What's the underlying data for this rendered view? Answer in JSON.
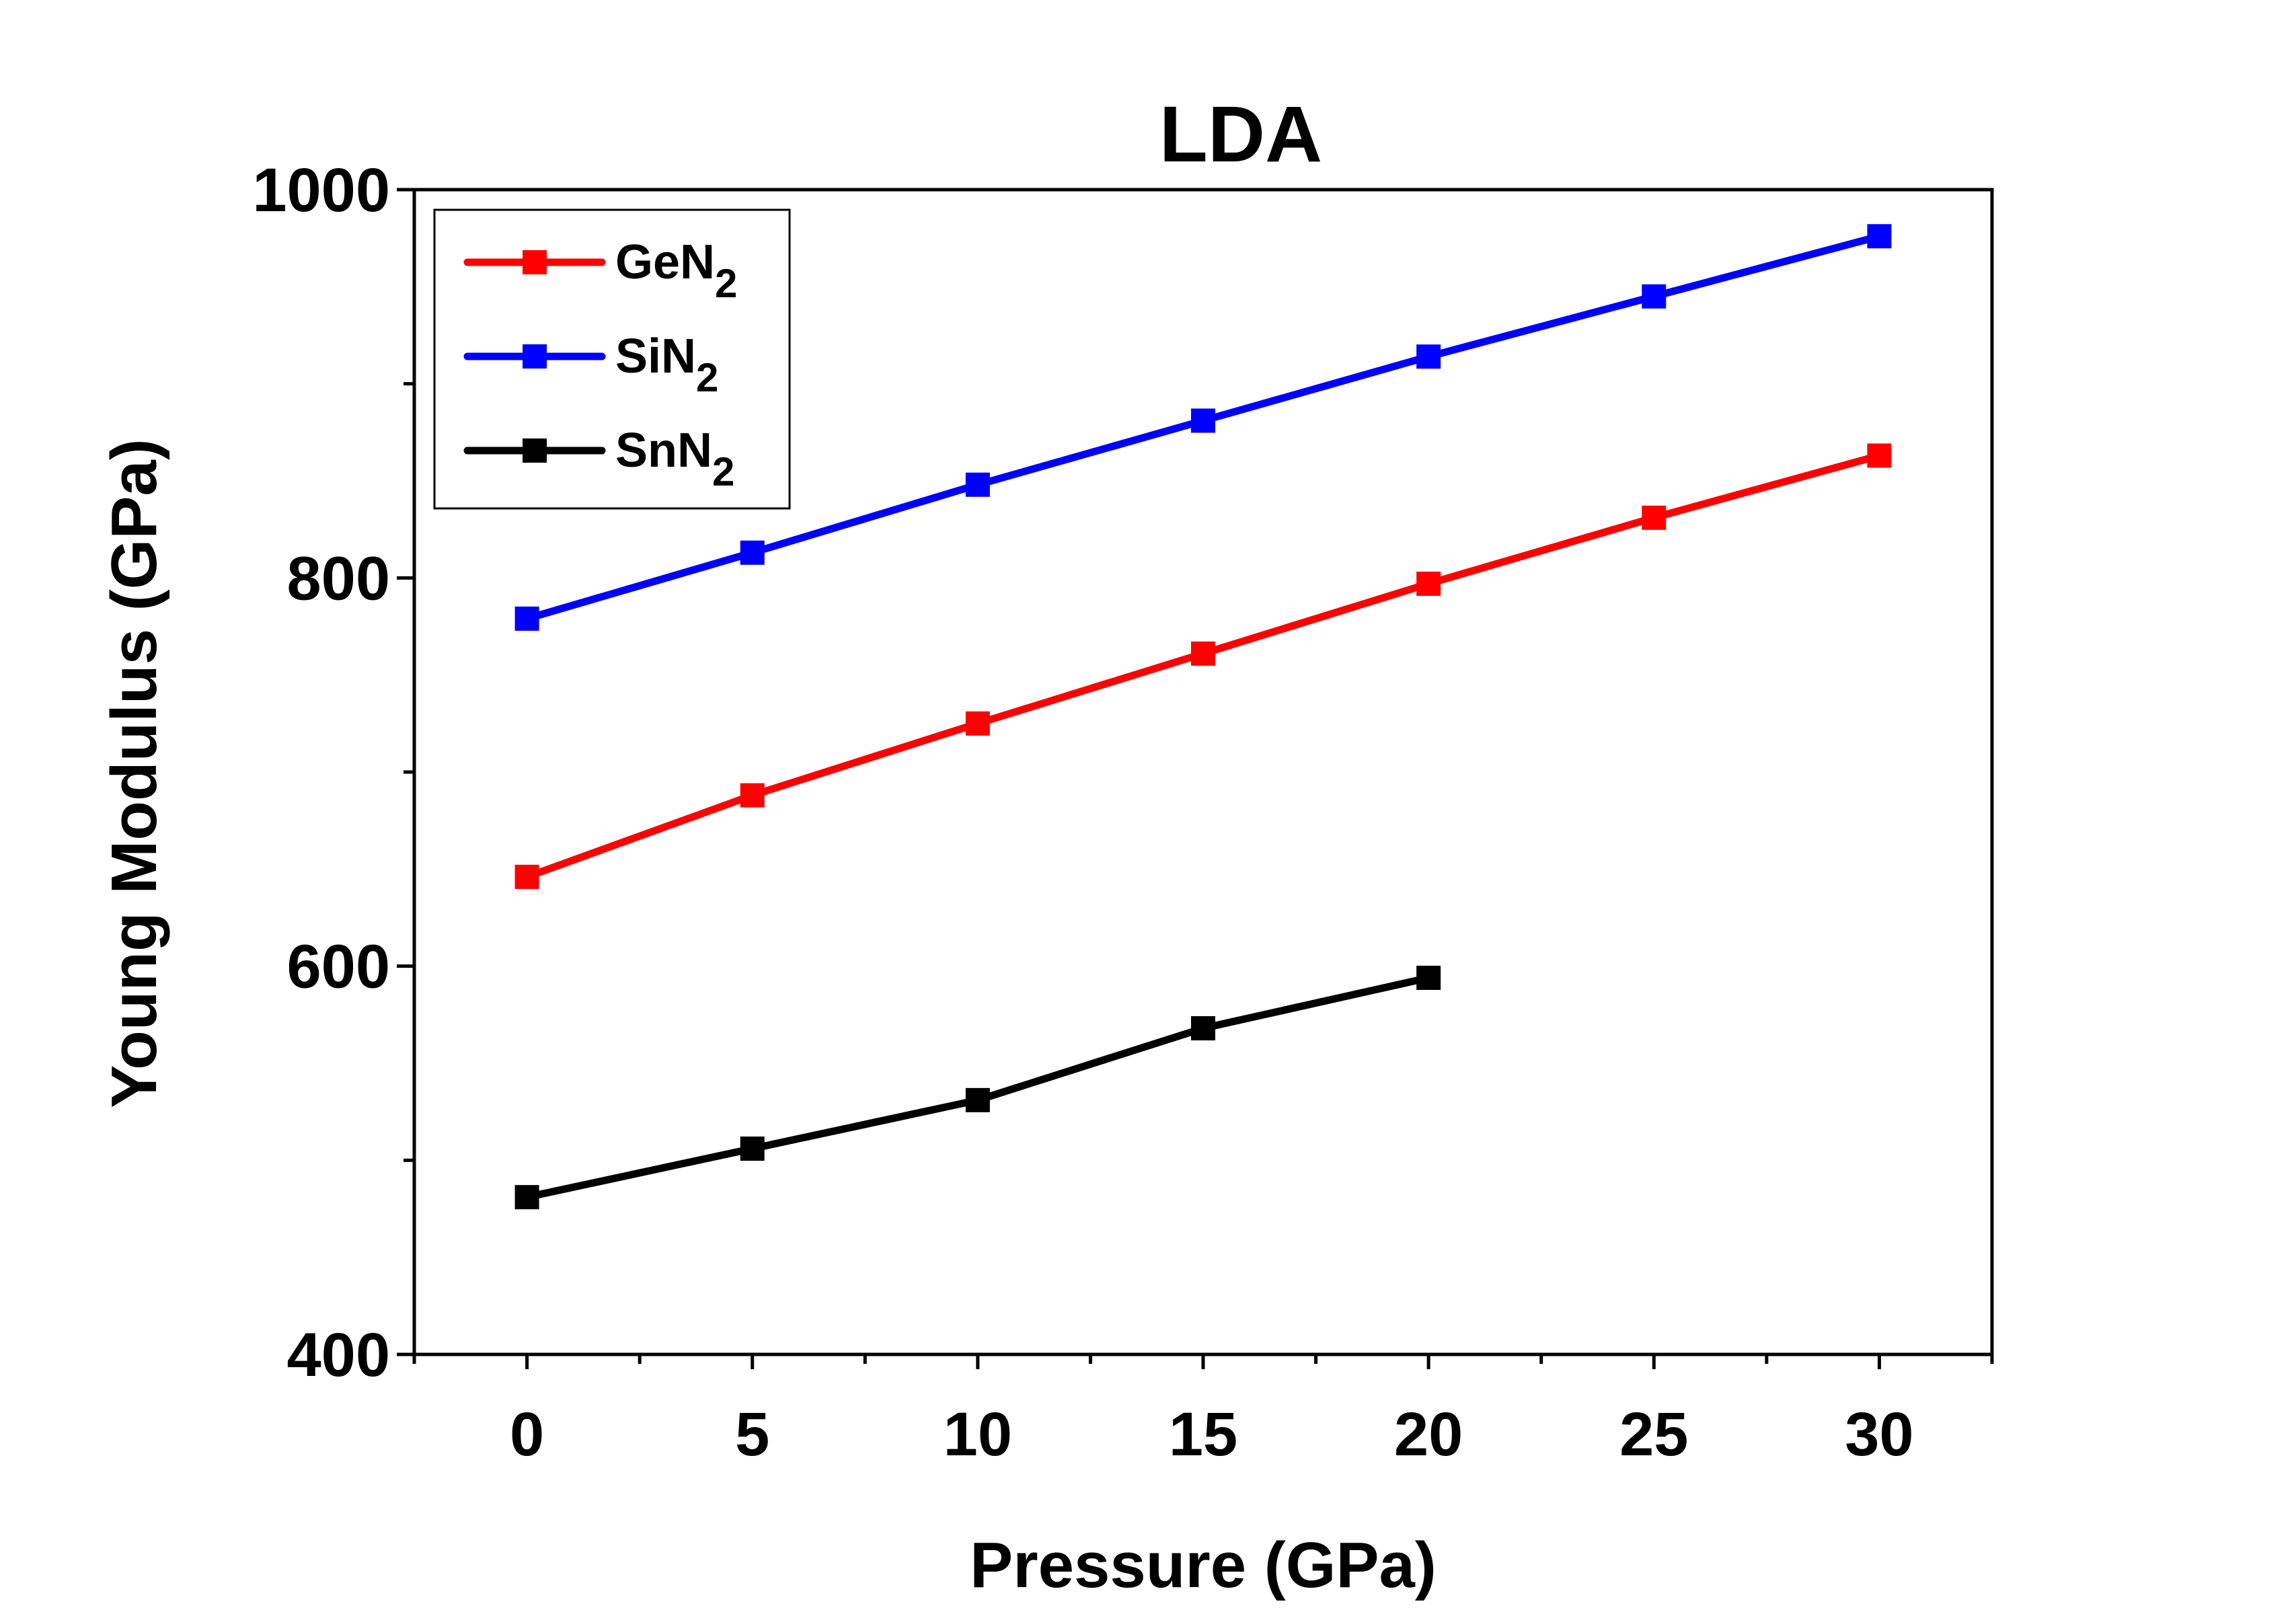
{
  "chart_data": {
    "type": "line",
    "title": "LDA",
    "xlabel": "Pressure (GPa)",
    "ylabel": "Young Modulus (GPa)",
    "xlim": [
      -2.5,
      32.5
    ],
    "ylim": [
      400,
      1000
    ],
    "xticks": [
      0,
      5,
      10,
      15,
      20,
      25,
      30
    ],
    "yticks": [
      400,
      600,
      800,
      1000
    ],
    "grid": false,
    "legend_position": "top-left",
    "series": [
      {
        "name": "GeN2",
        "name_base": "GeN",
        "name_sub": "2",
        "color": "#ff0000",
        "marker": "square",
        "x": [
          0,
          5,
          10,
          15,
          20,
          25,
          30
        ],
        "values": [
          646,
          688,
          725,
          761,
          797,
          831,
          863
        ]
      },
      {
        "name": "SiN2",
        "name_base": "SiN",
        "name_sub": "2",
        "color": "#0000ff",
        "marker": "square",
        "x": [
          0,
          5,
          10,
          15,
          20,
          25,
          30
        ],
        "values": [
          779,
          813,
          848,
          881,
          914,
          945,
          976
        ]
      },
      {
        "name": "SnN2",
        "name_base": "SnN",
        "name_sub": "2",
        "color": "#000000",
        "marker": "square",
        "x": [
          0,
          5,
          10,
          15,
          20
        ],
        "values": [
          481,
          506,
          531,
          568,
          594
        ]
      }
    ]
  }
}
